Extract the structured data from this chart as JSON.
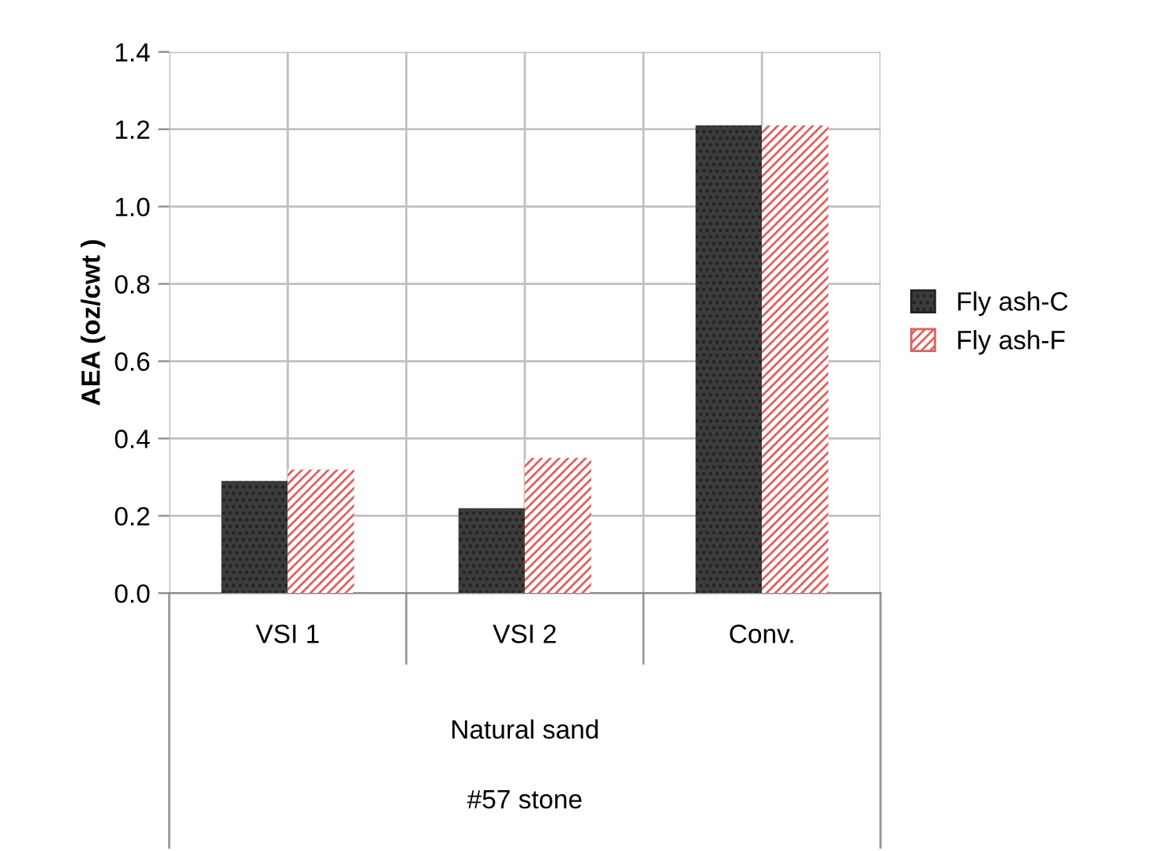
{
  "chart_data": {
    "type": "bar",
    "ylabel": "AEA (oz/cwt )",
    "categories": [
      "VSI 1",
      "VSI 2",
      "Conv."
    ],
    "series": [
      {
        "name": "Fly ash-C",
        "color": "#3c3c3c",
        "values": [
          0.29,
          0.22,
          1.21
        ]
      },
      {
        "name": "Fly ash-F",
        "color": "#e06060",
        "values": [
          0.32,
          0.35,
          1.21
        ]
      }
    ],
    "ylim": [
      0,
      1.4
    ],
    "yticks": [
      {
        "value": 0,
        "label": "0.0"
      },
      {
        "value": 0.2,
        "label": "0.2"
      },
      {
        "value": 0.4,
        "label": "0.4"
      },
      {
        "value": 0.6,
        "label": "0.6"
      },
      {
        "value": 0.8,
        "label": "0.8"
      },
      {
        "value": 1,
        "label": "1.0"
      },
      {
        "value": 1.2,
        "label": "1.2"
      },
      {
        "value": 1.4,
        "label": "1.4"
      }
    ],
    "annotations": [
      "Natural sand",
      "#57 stone"
    ],
    "grid": true,
    "legend": "right"
  }
}
